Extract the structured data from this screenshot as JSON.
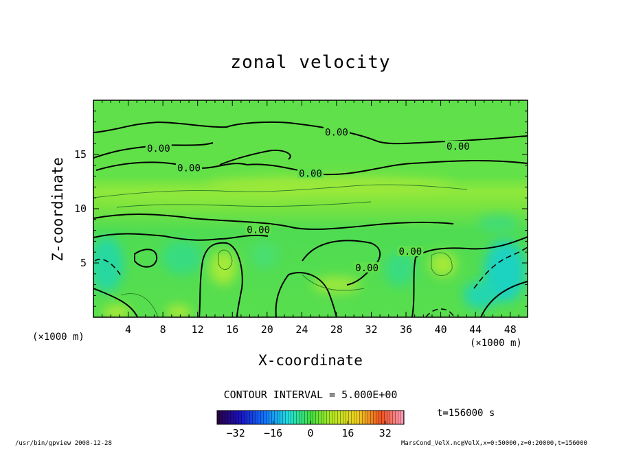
{
  "chart_data": {
    "type": "heatmap",
    "title": "zonal velocity",
    "xlabel": "X-coordinate",
    "ylabel": "Z-coordinate",
    "x_unit_left": "(×1000 m)",
    "x_unit_right": "(×1000 m)",
    "xlim": [
      0,
      50
    ],
    "ylim": [
      0,
      20
    ],
    "x_ticks": [
      4,
      8,
      12,
      16,
      20,
      24,
      28,
      32,
      36,
      40,
      44,
      48
    ],
    "y_ticks": [
      5,
      10,
      15
    ],
    "contour_interval_text": "CONTOUR INTERVAL = 5.000E+00",
    "contour_labels": [
      {
        "text": "0.00",
        "x": 7.5,
        "z": 15.5
      },
      {
        "text": "0.00",
        "x": 11.0,
        "z": 13.7
      },
      {
        "text": "0.00",
        "x": 28.0,
        "z": 17.0
      },
      {
        "text": "0.00",
        "x": 42.0,
        "z": 15.7
      },
      {
        "text": "0.00",
        "x": 25.0,
        "z": 13.2
      },
      {
        "text": "0.00",
        "x": 19.0,
        "z": 8.0
      },
      {
        "text": "0.00",
        "x": 31.5,
        "z": 4.5
      },
      {
        "text": "0.00",
        "x": 36.5,
        "z": 6.0
      }
    ],
    "colorbar": {
      "range": [
        -40,
        40
      ],
      "tick_values": [
        -32,
        -16,
        0,
        16,
        32
      ],
      "tick_labels": [
        "−32",
        "−16",
        "0",
        "16",
        "32"
      ]
    },
    "time_label": "t=156000 s"
  },
  "footer": {
    "left": "/usr/bin/gpview   2008-12-28",
    "right": "MarsCond_VelX.nc@VelX,x=0:50000,z=0:20000,t=156000"
  }
}
